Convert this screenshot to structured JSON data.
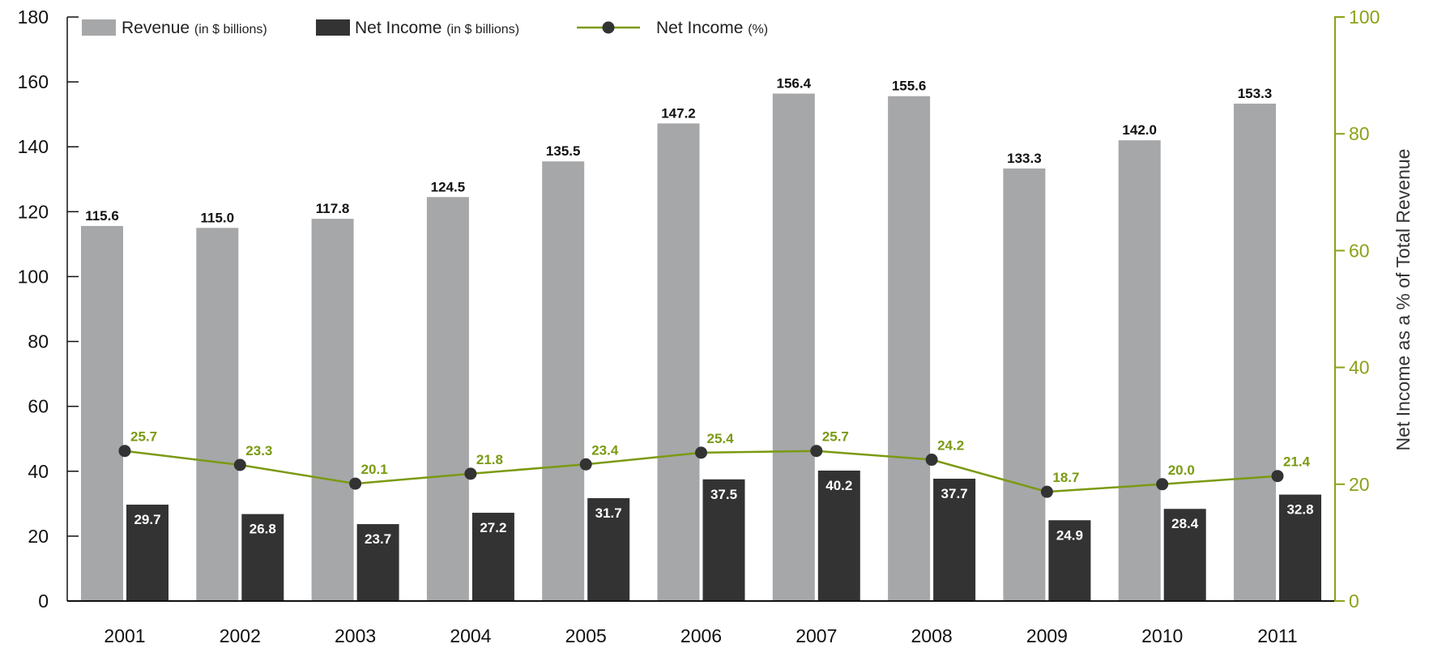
{
  "chart_data": {
    "type": "bar",
    "categories": [
      "2001",
      "2002",
      "2003",
      "2004",
      "2005",
      "2006",
      "2007",
      "2008",
      "2009",
      "2010",
      "2011"
    ],
    "series": [
      {
        "name": "Revenue",
        "unit_note": "(in $ billions)",
        "axis": "left",
        "kind": "bar",
        "color": "#a6a7a9",
        "label_color": "#111111",
        "values": [
          115.6,
          115.0,
          117.8,
          124.5,
          135.5,
          147.2,
          156.4,
          155.6,
          133.3,
          142.0,
          153.3
        ]
      },
      {
        "name": "Net Income",
        "unit_note": "(in $ billions)",
        "axis": "left",
        "kind": "bar",
        "color": "#333333",
        "label_color": "#ffffff",
        "values": [
          29.7,
          26.8,
          23.7,
          27.2,
          31.7,
          37.5,
          40.2,
          37.7,
          24.9,
          28.4,
          32.8
        ]
      },
      {
        "name": "Net Income",
        "unit_note": "(%)",
        "axis": "right",
        "kind": "line",
        "color": "#7b9a12",
        "label_color": "#7b9a12",
        "marker_color": "#333333",
        "values": [
          25.7,
          23.3,
          20.1,
          21.8,
          23.4,
          25.4,
          25.7,
          24.2,
          18.7,
          20.0,
          21.4
        ]
      }
    ],
    "ylim": [
      0,
      180
    ],
    "yticks": [
      0,
      20,
      40,
      60,
      80,
      100,
      120,
      140,
      160,
      180
    ],
    "y2lim": [
      0,
      100
    ],
    "y2ticks": [
      0,
      20,
      40,
      60,
      80,
      100
    ],
    "y2label": "Net Income as a % of Total Revenue",
    "xlabel": "",
    "ylabel": "",
    "grid": false,
    "legend_position": "top-left",
    "colors": {
      "left_axis": "#111111",
      "right_axis": "#8aa317"
    }
  }
}
